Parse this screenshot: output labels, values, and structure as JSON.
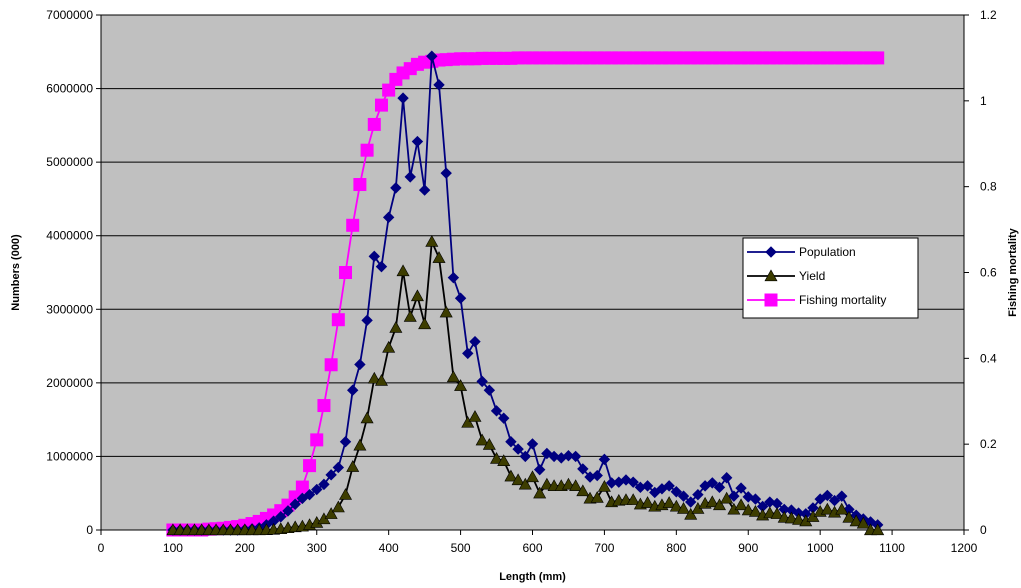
{
  "chart_data": {
    "type": "line",
    "title": "",
    "xlabel": "Length (mm)",
    "ylabel": "Numbers  (000)",
    "y2label": "Fishing mortality",
    "xlim": [
      0,
      1200
    ],
    "ylim": [
      0,
      7000000
    ],
    "y2lim": [
      0,
      1.2
    ],
    "x_ticks": [
      "0",
      "100",
      "200",
      "300",
      "400",
      "500",
      "600",
      "700",
      "800",
      "900",
      "1000",
      "1100",
      "1200"
    ],
    "y_ticks": [
      "0",
      "1000000",
      "2000000",
      "3000000",
      "4000000",
      "5000000",
      "6000000",
      "7000000"
    ],
    "y2_ticks": [
      "0",
      "0.2",
      "0.4",
      "0.6",
      "0.8",
      "1",
      "1.2"
    ],
    "grid": "horizontal",
    "plot_background": "#c0c0c0",
    "legend_position": "right",
    "series": [
      {
        "name": "Population",
        "axis": "left",
        "color": "#000080",
        "marker": "diamond",
        "x": [
          100,
          110,
          120,
          130,
          140,
          150,
          160,
          170,
          180,
          190,
          200,
          210,
          220,
          230,
          240,
          250,
          260,
          270,
          280,
          290,
          300,
          310,
          320,
          330,
          340,
          350,
          360,
          370,
          380,
          390,
          400,
          410,
          420,
          430,
          440,
          450,
          460,
          470,
          480,
          490,
          500,
          510,
          520,
          530,
          540,
          550,
          560,
          570,
          580,
          590,
          600,
          610,
          620,
          630,
          640,
          650,
          660,
          670,
          680,
          690,
          700,
          710,
          720,
          730,
          740,
          750,
          760,
          770,
          780,
          790,
          800,
          810,
          820,
          830,
          840,
          850,
          860,
          870,
          880,
          890,
          900,
          910,
          920,
          930,
          940,
          950,
          960,
          970,
          980,
          990,
          1000,
          1010,
          1020,
          1030,
          1040,
          1050,
          1060,
          1070,
          1080
        ],
        "values": [
          0,
          0,
          0,
          0,
          0,
          0,
          0,
          0,
          0,
          0,
          5000,
          15000,
          30000,
          70000,
          120000,
          180000,
          260000,
          350000,
          430000,
          480000,
          550000,
          620000,
          750000,
          850000,
          1200000,
          1900000,
          2250000,
          2850000,
          3720000,
          3580000,
          4250000,
          4650000,
          5870000,
          4800000,
          5280000,
          4620000,
          6440000,
          6050000,
          4850000,
          3430000,
          3150000,
          2400000,
          2560000,
          2020000,
          1900000,
          1620000,
          1520000,
          1200000,
          1100000,
          1000000,
          1170000,
          820000,
          1040000,
          1000000,
          980000,
          1010000,
          1000000,
          830000,
          720000,
          740000,
          960000,
          640000,
          650000,
          680000,
          650000,
          580000,
          600000,
          510000,
          560000,
          600000,
          520000,
          460000,
          380000,
          480000,
          600000,
          640000,
          580000,
          710000,
          460000,
          570000,
          450000,
          420000,
          320000,
          380000,
          360000,
          280000,
          270000,
          230000,
          220000,
          300000,
          420000,
          470000,
          400000,
          460000,
          280000,
          200000,
          150000,
          110000,
          70000
        ]
      },
      {
        "name": "Yield",
        "axis": "left",
        "color": "#000000",
        "marker": "triangle",
        "x": [
          100,
          110,
          120,
          130,
          140,
          150,
          160,
          170,
          180,
          190,
          200,
          210,
          220,
          230,
          240,
          250,
          260,
          270,
          280,
          290,
          300,
          310,
          320,
          330,
          340,
          350,
          360,
          370,
          380,
          390,
          400,
          410,
          420,
          430,
          440,
          450,
          460,
          470,
          480,
          490,
          500,
          510,
          520,
          530,
          540,
          550,
          560,
          570,
          580,
          590,
          600,
          610,
          620,
          630,
          640,
          650,
          660,
          670,
          680,
          690,
          700,
          710,
          720,
          730,
          740,
          750,
          760,
          770,
          780,
          790,
          800,
          810,
          820,
          830,
          840,
          850,
          860,
          870,
          880,
          890,
          900,
          910,
          920,
          930,
          940,
          950,
          960,
          970,
          980,
          990,
          1000,
          1010,
          1020,
          1030,
          1040,
          1050,
          1060,
          1070,
          1080
        ],
        "values": [
          0,
          0,
          0,
          0,
          0,
          0,
          0,
          0,
          0,
          0,
          0,
          0,
          0,
          2000,
          6000,
          15000,
          28000,
          40000,
          50000,
          70000,
          100000,
          150000,
          220000,
          310000,
          480000,
          860000,
          1150000,
          1520000,
          2060000,
          2030000,
          2480000,
          2750000,
          3520000,
          2900000,
          3180000,
          2800000,
          3920000,
          3700000,
          2960000,
          2080000,
          1960000,
          1460000,
          1540000,
          1220000,
          1160000,
          970000,
          940000,
          730000,
          680000,
          620000,
          720000,
          500000,
          620000,
          600000,
          600000,
          620000,
          600000,
          530000,
          430000,
          440000,
          590000,
          380000,
          400000,
          410000,
          410000,
          350000,
          370000,
          320000,
          340000,
          370000,
          320000,
          290000,
          210000,
          290000,
          360000,
          380000,
          340000,
          430000,
          280000,
          340000,
          270000,
          250000,
          200000,
          230000,
          220000,
          170000,
          160000,
          140000,
          120000,
          180000,
          250000,
          280000,
          240000,
          280000,
          170000,
          120000,
          90000,
          0,
          0
        ]
      },
      {
        "name": "Fishing mortality",
        "axis": "right",
        "color": "#ff00ff",
        "marker": "square",
        "x": [
          100,
          110,
          120,
          130,
          140,
          150,
          160,
          170,
          180,
          190,
          200,
          210,
          220,
          230,
          240,
          250,
          260,
          270,
          280,
          290,
          300,
          310,
          320,
          330,
          340,
          350,
          360,
          370,
          380,
          390,
          400,
          410,
          420,
          430,
          440,
          450,
          460,
          470,
          480,
          490,
          500,
          510,
          520,
          530,
          540,
          550,
          560,
          570,
          580,
          590,
          600,
          610,
          620,
          630,
          640,
          650,
          660,
          670,
          680,
          690,
          700,
          710,
          720,
          730,
          740,
          750,
          760,
          770,
          780,
          790,
          800,
          810,
          820,
          830,
          840,
          850,
          860,
          870,
          880,
          890,
          900,
          910,
          920,
          930,
          940,
          950,
          960,
          970,
          980,
          990,
          1000,
          1010,
          1020,
          1030,
          1040,
          1050,
          1060,
          1070,
          1080
        ],
        "values": [
          0,
          0,
          0,
          0,
          0,
          0.002,
          0.003,
          0.004,
          0.006,
          0.008,
          0.011,
          0.015,
          0.02,
          0.027,
          0.035,
          0.045,
          0.058,
          0.077,
          0.1,
          0.15,
          0.21,
          0.29,
          0.385,
          0.49,
          0.6,
          0.71,
          0.805,
          0.885,
          0.945,
          0.99,
          1.025,
          1.05,
          1.065,
          1.075,
          1.085,
          1.09,
          1.092,
          1.095,
          1.096,
          1.097,
          1.098,
          1.098,
          1.098,
          1.099,
          1.099,
          1.099,
          1.099,
          1.099,
          1.1,
          1.1,
          1.1,
          1.1,
          1.1,
          1.1,
          1.1,
          1.1,
          1.1,
          1.1,
          1.1,
          1.1,
          1.1,
          1.1,
          1.1,
          1.1,
          1.1,
          1.1,
          1.1,
          1.1,
          1.1,
          1.1,
          1.1,
          1.1,
          1.1,
          1.1,
          1.1,
          1.1,
          1.1,
          1.1,
          1.1,
          1.1,
          1.1,
          1.1,
          1.1,
          1.1,
          1.1,
          1.1,
          1.1,
          1.1,
          1.1,
          1.1,
          1.1,
          1.1,
          1.1,
          1.1,
          1.1,
          1.1,
          1.1,
          1.1,
          1.1
        ]
      }
    ]
  }
}
